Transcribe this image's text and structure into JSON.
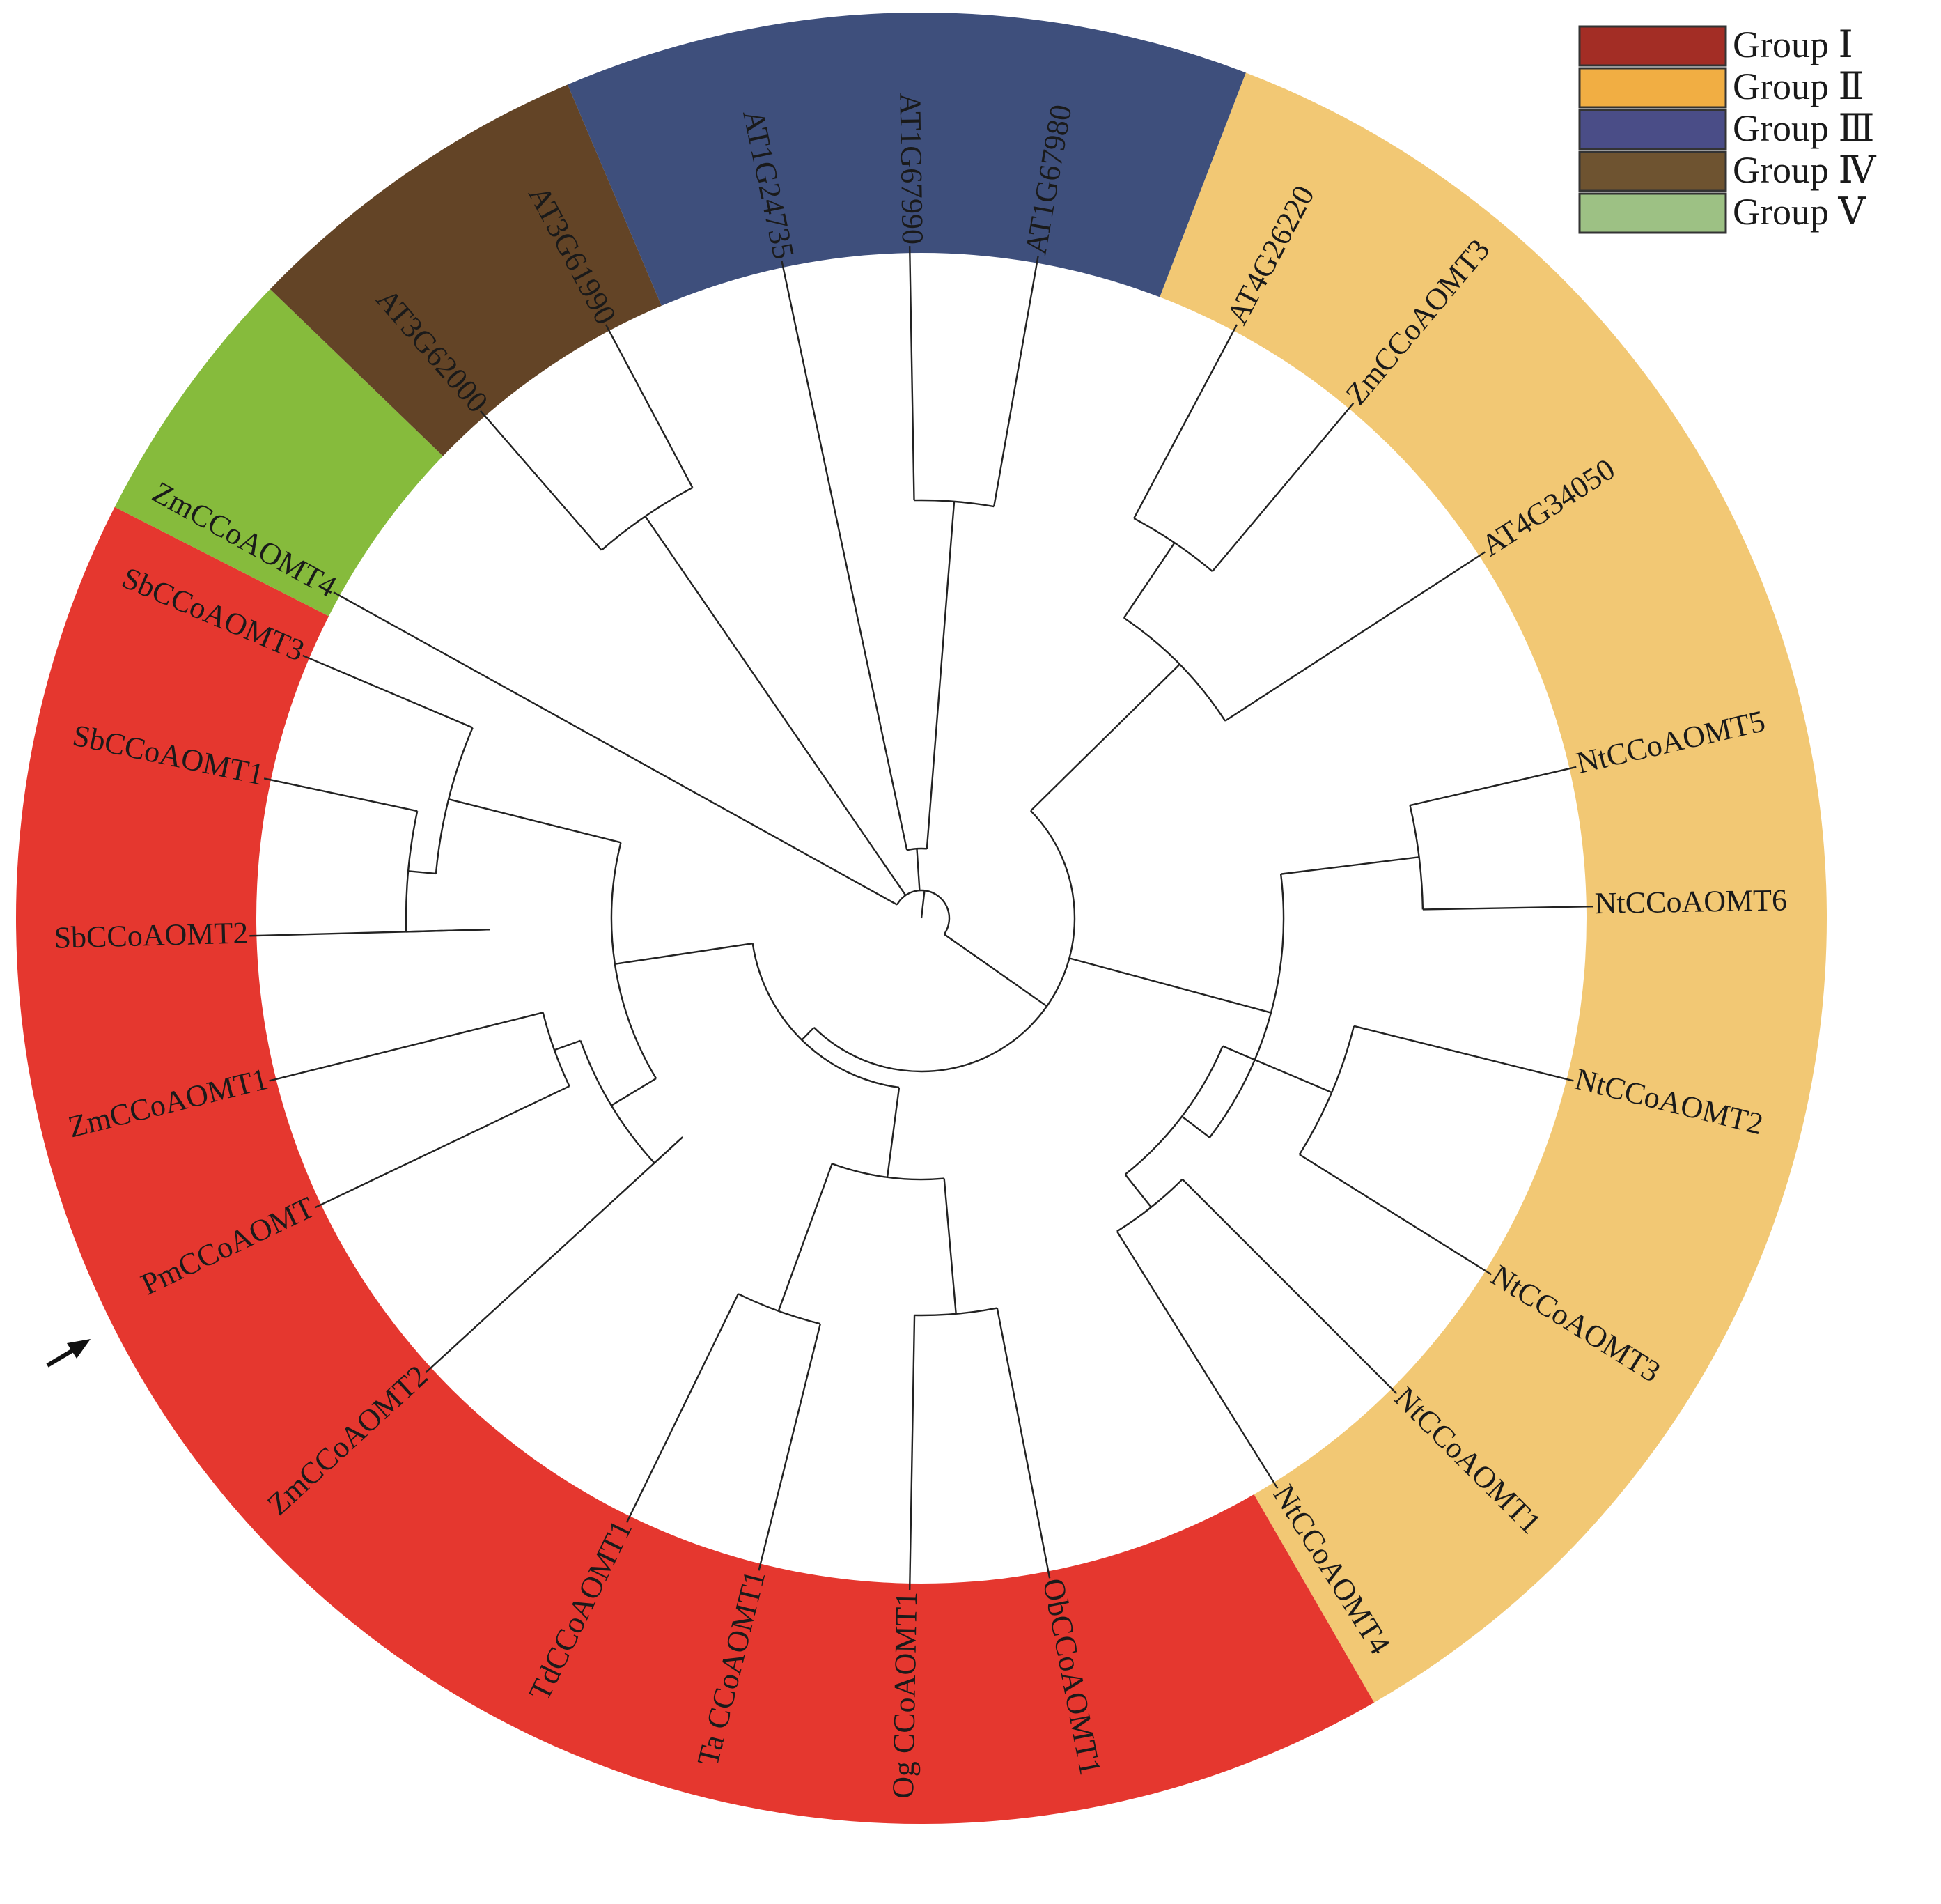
{
  "legend": {
    "items": [
      {
        "label": "Group Ⅰ",
        "color": "#a32d25"
      },
      {
        "label": "Group Ⅱ",
        "color": "#f1ae43"
      },
      {
        "label": "Group Ⅲ",
        "color": "#4a4d87"
      },
      {
        "label": "Group Ⅳ",
        "color": "#6e5330"
      },
      {
        "label": "Group Ⅴ",
        "color": "#9dc184"
      }
    ]
  },
  "ring_colors": {
    "group1": "#e5372f",
    "group2": "#f2c874",
    "group3": "#3e4f7c",
    "group4": "#634426",
    "group5": "#86bb3c"
  },
  "leaves": [
    {
      "id": "sb3",
      "label": "SbCCoAOMT3",
      "group": "group1"
    },
    {
      "id": "sb1",
      "label": "SbCCoAOMT1",
      "group": "group1"
    },
    {
      "id": "sb2",
      "label": "SbCCoAOMT2",
      "group": "group1"
    },
    {
      "id": "zm1",
      "label": "ZmCCoAOMT1",
      "group": "group1"
    },
    {
      "id": "pm",
      "label": "PmCCoAOMT",
      "group": "group1"
    },
    {
      "id": "zm2",
      "label": "ZmCCoAOMT2",
      "group": "group1"
    },
    {
      "id": "td1",
      "label": "TdCCoAOMT1",
      "group": "group1"
    },
    {
      "id": "ta1",
      "label": "Ta CCoAOMT1",
      "group": "group1"
    },
    {
      "id": "og1",
      "label": "Og CCoAOMT1",
      "group": "group1"
    },
    {
      "id": "ob1",
      "label": "ObCCoAOMT1",
      "group": "group1"
    },
    {
      "id": "nt4",
      "label": "NtCCoAOMT4",
      "group": "group2"
    },
    {
      "id": "nt1",
      "label": "NtCCoAOMT1",
      "group": "group2"
    },
    {
      "id": "nt3",
      "label": "NtCCoAOMT3",
      "group": "group2"
    },
    {
      "id": "nt2",
      "label": "NtCCoAOMT2",
      "group": "group2"
    },
    {
      "id": "nt6",
      "label": "NtCCoAOMT6",
      "group": "group2"
    },
    {
      "id": "nt5",
      "label": "NtCCoAOMT5",
      "group": "group2"
    },
    {
      "id": "at4g34050",
      "label": "AT4G34050",
      "group": "group2"
    },
    {
      "id": "zm3",
      "label": "ZmCCoAOMT3",
      "group": "group2"
    },
    {
      "id": "at4g26220",
      "label": "AT4G26220",
      "group": "group2"
    },
    {
      "id": "at1g67980",
      "label": "AT1G67980",
      "group": "group3"
    },
    {
      "id": "at1g67990",
      "label": "AT1G67990",
      "group": "group3"
    },
    {
      "id": "at1g24735",
      "label": "AT1G24735",
      "group": "group3"
    },
    {
      "id": "at3g61990",
      "label": "AT3G61990",
      "group": "group4"
    },
    {
      "id": "at3g62000",
      "label": "AT3G62000",
      "group": "group4"
    },
    {
      "id": "zm4",
      "label": "ZmCCoAOMT4",
      "group": "group5"
    }
  ]
}
